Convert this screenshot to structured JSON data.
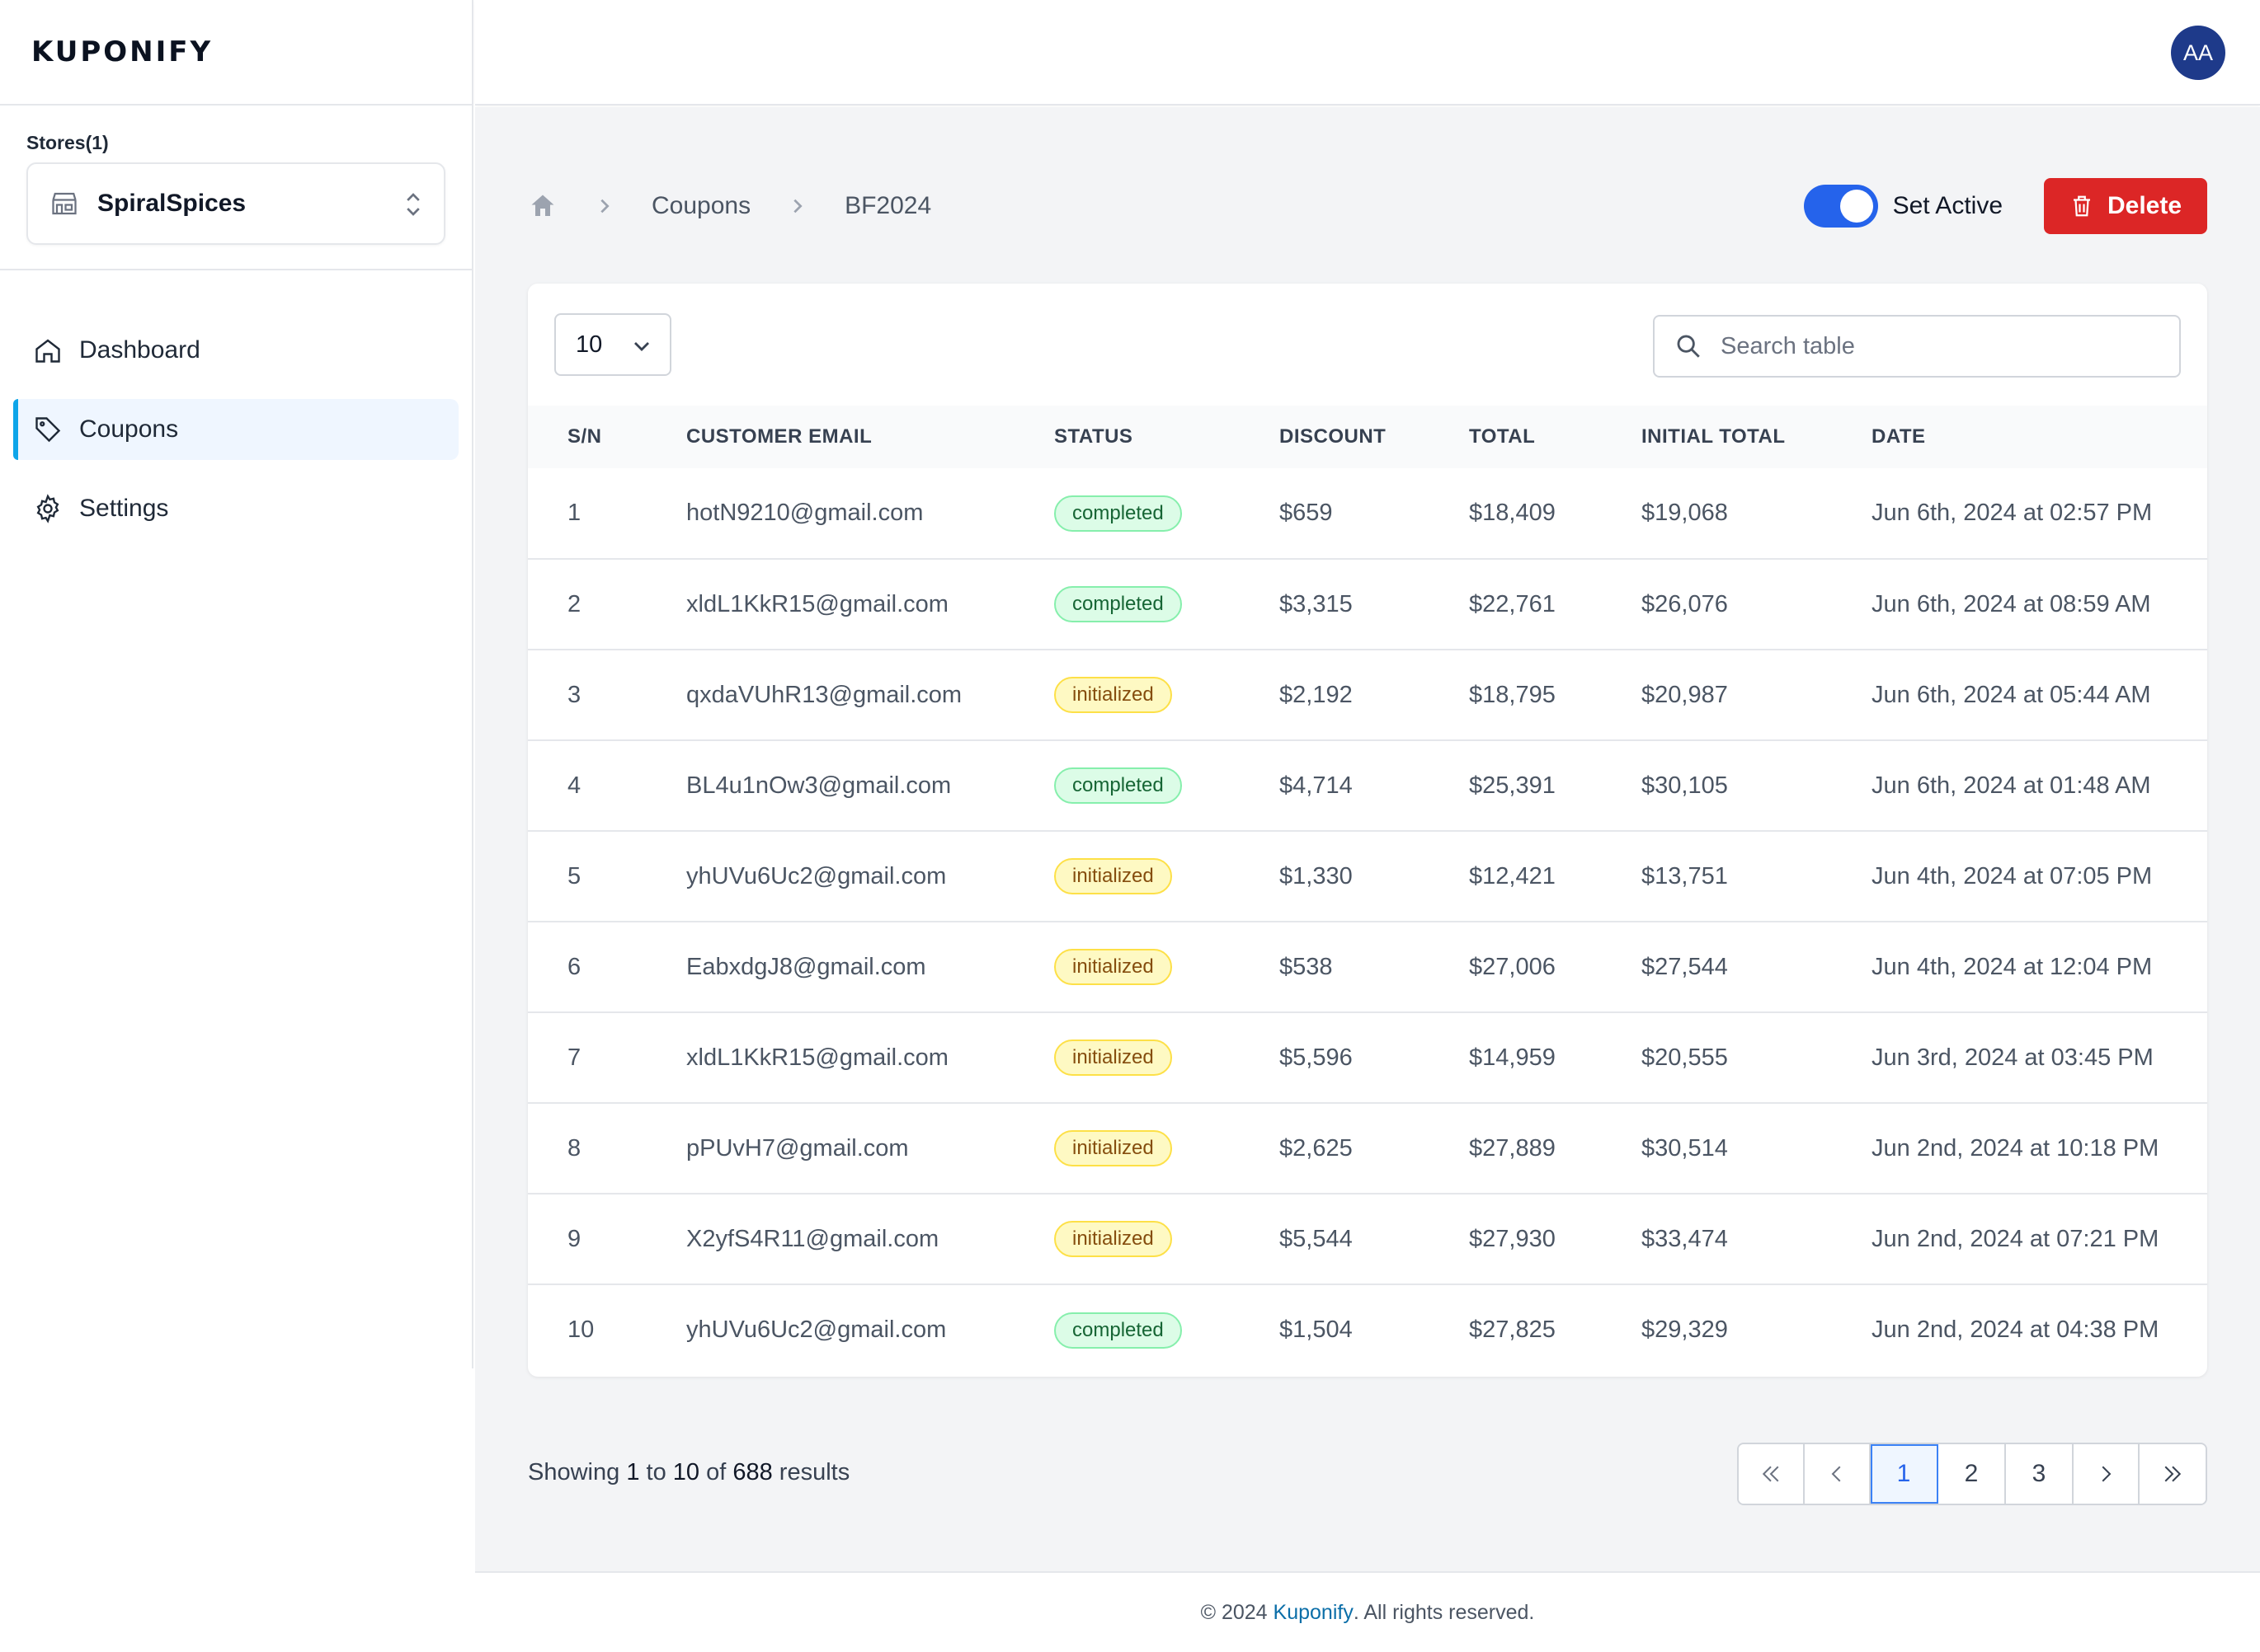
{
  "app": {
    "logo_text": "KUPONIFY",
    "logo_accent": "#0b6ea8"
  },
  "header": {
    "avatar_initials": "AA"
  },
  "sidebar": {
    "stores_label": "Stores(1)",
    "selected_store": "SpiralSpices",
    "items": [
      {
        "label": "Dashboard",
        "icon": "home-icon",
        "active": false
      },
      {
        "label": "Coupons",
        "icon": "tag-icon",
        "active": true
      },
      {
        "label": "Settings",
        "icon": "gear-icon",
        "active": false
      }
    ]
  },
  "breadcrumb": {
    "level1": "Coupons",
    "level2": "BF2024"
  },
  "actions": {
    "toggle_label": "Set Active",
    "toggle_on": true,
    "delete_label": "Delete"
  },
  "table": {
    "page_size": "10",
    "search_placeholder": "Search table",
    "columns": [
      "S/N",
      "CUSTOMER EMAIL",
      "STATUS",
      "DISCOUNT",
      "TOTAL",
      "INITIAL TOTAL",
      "DATE"
    ],
    "rows": [
      {
        "sn": "1",
        "email": "hotN9210@gmail.com",
        "status": "completed",
        "discount": "$659",
        "total": "$18,409",
        "initial_total": "$19,068",
        "date": "Jun 6th, 2024 at 02:57 PM"
      },
      {
        "sn": "2",
        "email": "xldL1KkR15@gmail.com",
        "status": "completed",
        "discount": "$3,315",
        "total": "$22,761",
        "initial_total": "$26,076",
        "date": "Jun 6th, 2024 at 08:59 AM"
      },
      {
        "sn": "3",
        "email": "qxdaVUhR13@gmail.com",
        "status": "initialized",
        "discount": "$2,192",
        "total": "$18,795",
        "initial_total": "$20,987",
        "date": "Jun 6th, 2024 at 05:44 AM"
      },
      {
        "sn": "4",
        "email": "BL4u1nOw3@gmail.com",
        "status": "completed",
        "discount": "$4,714",
        "total": "$25,391",
        "initial_total": "$30,105",
        "date": "Jun 6th, 2024 at 01:48 AM"
      },
      {
        "sn": "5",
        "email": "yhUVu6Uc2@gmail.com",
        "status": "initialized",
        "discount": "$1,330",
        "total": "$12,421",
        "initial_total": "$13,751",
        "date": "Jun 4th, 2024 at 07:05 PM"
      },
      {
        "sn": "6",
        "email": "EabxdgJ8@gmail.com",
        "status": "initialized",
        "discount": "$538",
        "total": "$27,006",
        "initial_total": "$27,544",
        "date": "Jun 4th, 2024 at 12:04 PM"
      },
      {
        "sn": "7",
        "email": "xldL1KkR15@gmail.com",
        "status": "initialized",
        "discount": "$5,596",
        "total": "$14,959",
        "initial_total": "$20,555",
        "date": "Jun 3rd, 2024 at 03:45 PM"
      },
      {
        "sn": "8",
        "email": "pPUvH7@gmail.com",
        "status": "initialized",
        "discount": "$2,625",
        "total": "$27,889",
        "initial_total": "$30,514",
        "date": "Jun 2nd, 2024 at 10:18 PM"
      },
      {
        "sn": "9",
        "email": "X2yfS4R11@gmail.com",
        "status": "initialized",
        "discount": "$5,544",
        "total": "$27,930",
        "initial_total": "$33,474",
        "date": "Jun 2nd, 2024 at 07:21 PM"
      },
      {
        "sn": "10",
        "email": "yhUVu6Uc2@gmail.com",
        "status": "completed",
        "discount": "$1,504",
        "total": "$27,825",
        "initial_total": "$29,329",
        "date": "Jun 2nd, 2024 at 04:38 PM"
      }
    ]
  },
  "pagination": {
    "showing_prefix": "Showing",
    "from": "1",
    "to_word": "to",
    "to": "10",
    "of_word": "of",
    "total": "688",
    "results_word": "results",
    "pages": [
      "1",
      "2",
      "3"
    ],
    "current_page": "1"
  },
  "footer": {
    "prefix": "© 2024",
    "brand": "Kuponify",
    "suffix": ". All rights reserved."
  },
  "colors": {
    "primary": "#2563eb",
    "danger": "#dc2626",
    "completed_bg": "#dcfce7",
    "initialized_bg": "#fef9c3"
  }
}
